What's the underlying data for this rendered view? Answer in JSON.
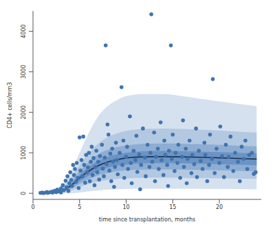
{
  "chart_data": {
    "type": "scatter",
    "xlabel": "time since transplantation, months",
    "ylabel": "CD4+ cells/mm3",
    "xlim": [
      0,
      24.5
    ],
    "ylim": [
      -150,
      4500
    ],
    "xticks": [
      0,
      5,
      10,
      15,
      20
    ],
    "yticks": [
      0,
      1000,
      2000,
      3000,
      4000
    ],
    "grid": false,
    "series": [
      {
        "type": "band",
        "color": "#d5e1ef",
        "x": [
          0.8,
          2,
          3,
          4,
          5,
          6,
          7,
          8,
          9,
          10,
          12,
          14,
          16,
          18,
          20,
          22,
          24
        ],
        "lower": [
          0,
          0,
          0,
          0,
          20,
          50,
          70,
          90,
          100,
          110,
          115,
          115,
          112,
          110,
          108,
          105,
          100
        ],
        "upper": [
          0,
          20,
          150,
          500,
          1000,
          1500,
          1900,
          2150,
          2300,
          2400,
          2450,
          2450,
          2400,
          2330,
          2270,
          2210,
          2150
        ]
      },
      {
        "type": "band",
        "color": "#b3c8e1",
        "x": [
          0.8,
          2,
          3,
          4,
          5,
          6,
          7,
          8,
          9,
          10,
          12,
          14,
          16,
          18,
          20,
          22,
          24
        ],
        "lower": [
          0,
          0,
          10,
          60,
          150,
          230,
          290,
          330,
          355,
          370,
          385,
          385,
          380,
          375,
          370,
          365,
          360
        ],
        "upper": [
          0,
          12,
          100,
          350,
          700,
          1000,
          1230,
          1380,
          1480,
          1540,
          1590,
          1600,
          1590,
          1570,
          1550,
          1520,
          1500
        ]
      },
      {
        "type": "band",
        "color": "#8eadd3",
        "x": [
          0.8,
          2,
          3,
          4,
          5,
          6,
          7,
          8,
          9,
          10,
          12,
          14,
          16,
          18,
          20,
          22,
          24
        ],
        "lower": [
          0,
          2,
          20,
          100,
          230,
          350,
          440,
          500,
          540,
          565,
          585,
          590,
          585,
          575,
          565,
          555,
          540
        ],
        "upper": [
          0,
          9,
          70,
          270,
          540,
          780,
          960,
          1070,
          1140,
          1180,
          1220,
          1230,
          1225,
          1210,
          1195,
          1175,
          1160
        ]
      },
      {
        "type": "band",
        "color": "#6b93c4",
        "x": [
          0.8,
          2,
          3,
          4,
          5,
          6,
          7,
          8,
          9,
          10,
          12,
          14,
          16,
          18,
          20,
          22,
          24
        ],
        "lower": [
          0,
          3,
          30,
          140,
          300,
          440,
          550,
          630,
          680,
          710,
          740,
          745,
          740,
          730,
          720,
          705,
          690
        ],
        "upper": [
          0,
          7,
          55,
          220,
          450,
          650,
          800,
          900,
          960,
          1000,
          1040,
          1045,
          1040,
          1030,
          1015,
          1000,
          985
        ]
      },
      {
        "type": "scatter",
        "color": "#3f74ae",
        "marker": "circle",
        "x": [
          0.8,
          1.0,
          1.1,
          1.3,
          1.5,
          1.6,
          1.8,
          2.0,
          2.1,
          2.3,
          2.5,
          2.6,
          2.8,
          3.0,
          3.0,
          3.2,
          3.3,
          3.5,
          3.6,
          3.7,
          3.8,
          3.9,
          4.0,
          4.1,
          4.2,
          4.3,
          4.4,
          4.5,
          4.6,
          4.7,
          4.8,
          4.9,
          5.0,
          5.1,
          5.2,
          5.3,
          5.4,
          5.5,
          5.6,
          5.7,
          5.8,
          5.9,
          6.0,
          6.1,
          6.2,
          6.3,
          6.4,
          6.5,
          6.6,
          6.7,
          6.8,
          6.9,
          7.0,
          7.1,
          7.2,
          7.4,
          7.5,
          7.6,
          7.7,
          7.8,
          7.9,
          8.0,
          8.1,
          8.2,
          8.3,
          8.4,
          8.5,
          8.6,
          8.7,
          8.8,
          8.9,
          9.0,
          9.1,
          9.3,
          9.5,
          9.6,
          9.7,
          9.8,
          10.0,
          10.1,
          10.2,
          10.4,
          10.5,
          10.6,
          10.8,
          11.0,
          11.1,
          11.2,
          11.4,
          11.5,
          11.6,
          11.8,
          12.0,
          12.1,
          12.3,
          12.5,
          12.6,
          12.7,
          12.8,
          13.0,
          13.1,
          13.2,
          13.4,
          13.5,
          13.7,
          13.8,
          14.0,
          14.1,
          14.2,
          14.4,
          14.5,
          14.6,
          14.8,
          14.9,
          15.0,
          15.2,
          15.3,
          15.5,
          15.6,
          15.8,
          16.0,
          16.1,
          16.2,
          16.4,
          16.5,
          16.6,
          16.8,
          17.0,
          17.1,
          17.3,
          17.5,
          17.6,
          17.8,
          18.0,
          18.2,
          18.4,
          18.5,
          18.7,
          18.9,
          19.0,
          19.2,
          19.3,
          19.5,
          19.7,
          20.0,
          20.1,
          20.3,
          20.5,
          20.7,
          20.9,
          21.0,
          21.2,
          21.5,
          21.7,
          22.0,
          22.2,
          22.4,
          22.6,
          22.8,
          23.0,
          23.2,
          23.5,
          23.7,
          23.9
        ],
        "values": [
          10,
          20,
          5,
          15,
          30,
          10,
          25,
          40,
          15,
          60,
          30,
          90,
          50,
          120,
          20,
          200,
          80,
          310,
          150,
          420,
          60,
          250,
          520,
          330,
          180,
          700,
          450,
          600,
          280,
          750,
          380,
          130,
          1380,
          560,
          820,
          420,
          1400,
          700,
          260,
          950,
          520,
          640,
          1000,
          300,
          780,
          1150,
          450,
          870,
          200,
          650,
          1050,
          520,
          780,
          340,
          920,
          1200,
          610,
          420,
          880,
          3650,
          720,
          1700,
          1450,
          560,
          980,
          300,
          1100,
          780,
          160,
          650,
          1250,
          820,
          470,
          1000,
          2620,
          700,
          1300,
          380,
          900,
          1150,
          600,
          1900,
          750,
          250,
          1050,
          820,
          1420,
          530,
          960,
          100,
          700,
          1600,
          880,
          420,
          1200,
          650,
          1000,
          4420,
          780,
          1500,
          300,
          900,
          1100,
          600,
          1750,
          820,
          450,
          1300,
          950,
          700,
          180,
          1050,
          3650,
          850,
          1450,
          550,
          1000,
          750,
          1200,
          380,
          900,
          1800,
          650,
          1100,
          250,
          850,
          1300,
          500,
          950,
          720,
          1600,
          400,
          1050,
          800,
          600,
          1250,
          950,
          300,
          700,
          1450,
          850,
          2820,
          500,
          1100,
          750,
          1650,
          920,
          400,
          1200,
          650,
          900,
          1400,
          550,
          1000,
          780,
          300,
          1150,
          850,
          1300,
          600,
          950,
          1000,
          480,
          520
        ]
      },
      {
        "type": "line",
        "color": "#1c2f4d",
        "x": [
          0.8,
          2,
          3,
          4,
          5,
          6,
          7,
          8,
          9,
          10,
          12,
          14,
          16,
          18,
          20,
          22,
          24
        ],
        "values": [
          0,
          5,
          40,
          180,
          380,
          550,
          680,
          770,
          830,
          870,
          900,
          905,
          900,
          890,
          875,
          860,
          845
        ]
      }
    ]
  }
}
